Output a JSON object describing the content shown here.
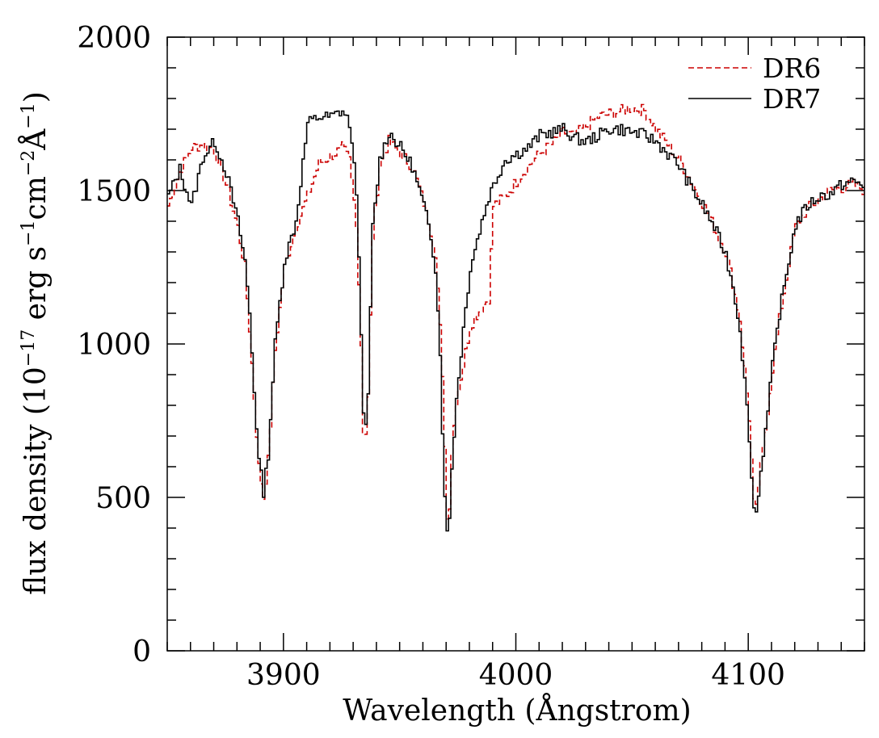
{
  "chart_data": {
    "type": "line",
    "xlabel": "Wavelength (Ångstrom)",
    "ylabel_main": "flux density (10",
    "ylabel_exp1": "−17",
    "ylabel_mid1": " erg s",
    "ylabel_exp2": "−1",
    "ylabel_mid2": "cm",
    "ylabel_exp3": "−2",
    "ylabel_mid3": "Å",
    "ylabel_exp4": "−1",
    "ylabel_end": ")",
    "xlim": [
      3850,
      4150
    ],
    "ylim": [
      0,
      2000
    ],
    "x_ticks": [
      3900,
      4000,
      4100
    ],
    "x_tick_labels": [
      "3900",
      "4000",
      "4100"
    ],
    "y_ticks": [
      0,
      500,
      1000,
      1500,
      2000
    ],
    "y_tick_labels": [
      "0",
      "500",
      "1000",
      "1500",
      "2000"
    ],
    "legend_position": "top-right",
    "series": [
      {
        "name": "DR6",
        "color": "#cc0000",
        "style": "dashed",
        "x": [
          3850,
          3855,
          3860,
          3865,
          3870,
          3875,
          3880,
          3883,
          3885,
          3887,
          3889,
          3891,
          3893,
          3896,
          3900,
          3905,
          3910,
          3915,
          3920,
          3925,
          3928,
          3931,
          3933,
          3934,
          3935,
          3936,
          3938,
          3941,
          3945,
          3950,
          3955,
          3960,
          3963,
          3965,
          3966,
          3967,
          3968,
          3969,
          3970,
          3971,
          3972,
          3974,
          3977,
          3980,
          3985,
          3988,
          3990,
          3995,
          4000,
          4005,
          4010,
          4015,
          4020,
          4025,
          4030,
          4035,
          4040,
          4045,
          4050,
          4055,
          4060,
          4065,
          4070,
          4075,
          4080,
          4085,
          4090,
          4093,
          4096,
          4098,
          4100,
          4101,
          4102,
          4103,
          4104,
          4106,
          4108,
          4110,
          4113,
          4117,
          4120,
          4125,
          4130,
          4135,
          4140,
          4145,
          4150
        ],
        "values": [
          1450,
          1560,
          1640,
          1650,
          1630,
          1520,
          1380,
          1250,
          1050,
          820,
          600,
          500,
          620,
          980,
          1250,
          1380,
          1480,
          1590,
          1610,
          1640,
          1600,
          1400,
          1000,
          720,
          710,
          820,
          1350,
          1580,
          1660,
          1620,
          1580,
          1460,
          1370,
          1300,
          1180,
          1050,
          880,
          680,
          430,
          480,
          650,
          820,
          930,
          1060,
          1120,
          1150,
          1450,
          1480,
          1530,
          1580,
          1620,
          1650,
          1690,
          1680,
          1710,
          1740,
          1750,
          1760,
          1770,
          1760,
          1700,
          1650,
          1600,
          1530,
          1460,
          1380,
          1300,
          1200,
          1080,
          920,
          760,
          620,
          480,
          460,
          540,
          650,
          780,
          920,
          1080,
          1260,
          1380,
          1440,
          1470,
          1500,
          1510,
          1520,
          1500
        ]
      },
      {
        "name": "DR7",
        "color": "#000000",
        "style": "solid",
        "x": [
          3850,
          3855,
          3860,
          3865,
          3870,
          3875,
          3880,
          3883,
          3885,
          3887,
          3889,
          3891,
          3893,
          3896,
          3900,
          3905,
          3910,
          3915,
          3920,
          3925,
          3928,
          3931,
          3933,
          3934,
          3935,
          3936,
          3938,
          3941,
          3945,
          3950,
          3955,
          3960,
          3963,
          3965,
          3966,
          3967,
          3968,
          3969,
          3970,
          3971,
          3972,
          3974,
          3977,
          3980,
          3985,
          3988,
          3990,
          3995,
          4000,
          4005,
          4010,
          4015,
          4020,
          4025,
          4030,
          4035,
          4040,
          4045,
          4050,
          4055,
          4060,
          4065,
          4070,
          4075,
          4080,
          4085,
          4090,
          4093,
          4096,
          4098,
          4100,
          4101,
          4102,
          4103,
          4104,
          4106,
          4108,
          4110,
          4113,
          4117,
          4120,
          4125,
          4130,
          4135,
          4140,
          4145,
          4150
        ],
        "values": [
          1480,
          1570,
          1450,
          1610,
          1660,
          1560,
          1400,
          1270,
          1100,
          850,
          620,
          520,
          640,
          1000,
          1270,
          1400,
          1720,
          1740,
          1740,
          1760,
          1720,
          1500,
          1050,
          760,
          720,
          840,
          1380,
          1600,
          1690,
          1640,
          1580,
          1450,
          1350,
          1250,
          1120,
          960,
          720,
          520,
          380,
          430,
          600,
          820,
          1050,
          1250,
          1400,
          1480,
          1520,
          1600,
          1620,
          1640,
          1680,
          1690,
          1700,
          1670,
          1660,
          1680,
          1700,
          1700,
          1690,
          1680,
          1660,
          1620,
          1580,
          1510,
          1450,
          1380,
          1290,
          1190,
          1050,
          880,
          700,
          560,
          470,
          450,
          520,
          650,
          780,
          930,
          1100,
          1270,
          1390,
          1450,
          1480,
          1490,
          1520,
          1530,
          1510
        ]
      }
    ]
  }
}
